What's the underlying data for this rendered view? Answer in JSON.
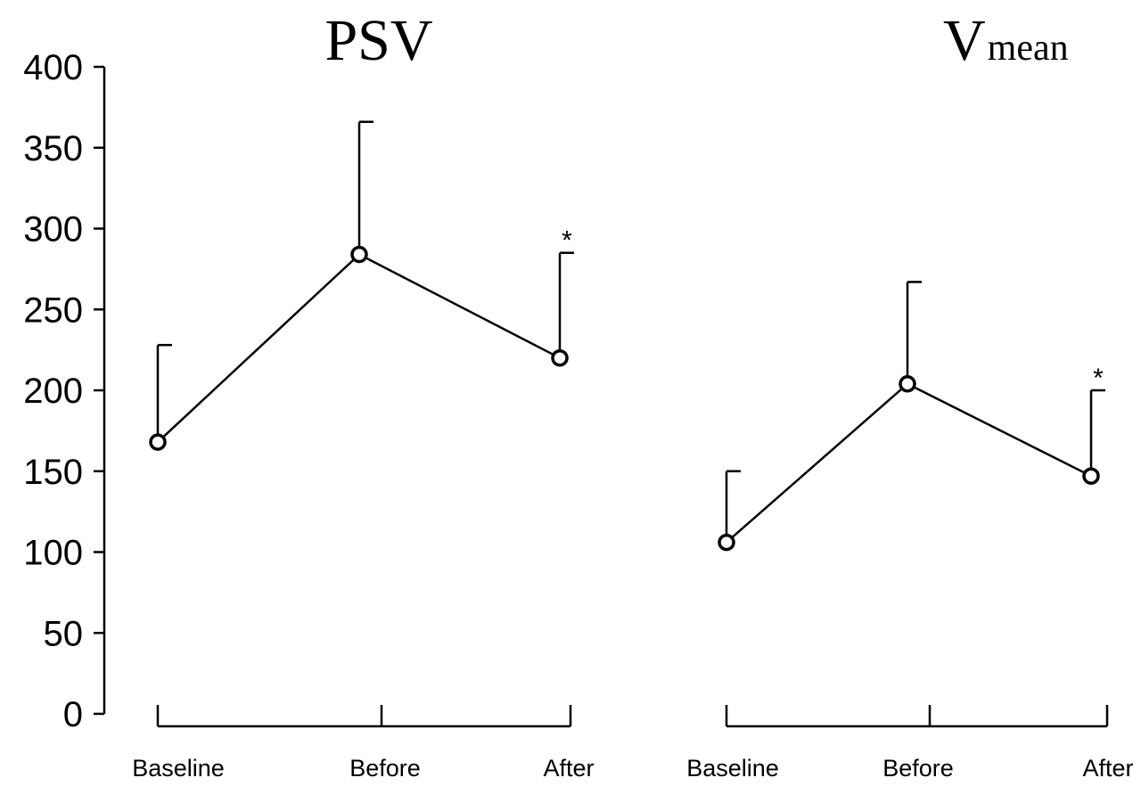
{
  "chart_data": {
    "type": "line",
    "y_axis": {
      "ylim": [
        0,
        400
      ],
      "ticks": [
        "0",
        "50",
        "100",
        "150",
        "200",
        "250",
        "300",
        "350",
        "400"
      ]
    },
    "categories": [
      "Baseline",
      "Before",
      "After"
    ],
    "panels": [
      {
        "title": "PSV",
        "title_sub": "",
        "values": [
          168,
          284,
          220
        ],
        "error_upper": [
          228,
          366,
          285
        ],
        "significance": [
          "",
          "",
          "*"
        ]
      },
      {
        "title": "V",
        "title_sub": "mean",
        "values": [
          106,
          204,
          147
        ],
        "error_upper": [
          150,
          267,
          200
        ],
        "significance": [
          "",
          "",
          "*"
        ]
      }
    ]
  }
}
